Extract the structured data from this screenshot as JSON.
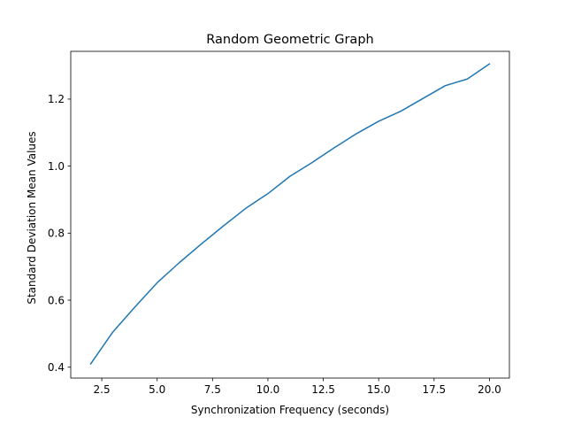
{
  "chart_data": {
    "type": "line",
    "title": "Random Geometric Graph",
    "xlabel": "Synchronization Frequency (seconds)",
    "ylabel": "Standard Deviation Mean Values",
    "xlim": [
      1.1,
      20.9
    ],
    "ylim": [
      0.3675,
      1.3425
    ],
    "xticks": [
      2.5,
      5.0,
      7.5,
      10.0,
      12.5,
      15.0,
      17.5,
      20.0
    ],
    "xtick_labels": [
      "2.5",
      "5.0",
      "7.5",
      "10.0",
      "12.5",
      "15.0",
      "17.5",
      "20.0"
    ],
    "yticks": [
      0.4,
      0.6,
      0.8,
      1.0,
      1.2
    ],
    "ytick_labels": [
      "0.4",
      "0.6",
      "0.8",
      "1.0",
      "1.2"
    ],
    "grid": false,
    "legend": "none",
    "series": [
      {
        "color": "#1f77b4",
        "x": [
          2,
          3,
          4,
          5,
          6,
          7,
          8,
          9,
          10,
          11,
          12,
          13,
          14,
          15,
          16,
          17,
          18,
          19,
          20
        ],
        "y": [
          0.41,
          0.505,
          0.58,
          0.652,
          0.712,
          0.768,
          0.822,
          0.874,
          0.918,
          0.97,
          1.011,
          1.055,
          1.097,
          1.134,
          1.164,
          1.202,
          1.24,
          1.26,
          1.305
        ]
      }
    ]
  }
}
